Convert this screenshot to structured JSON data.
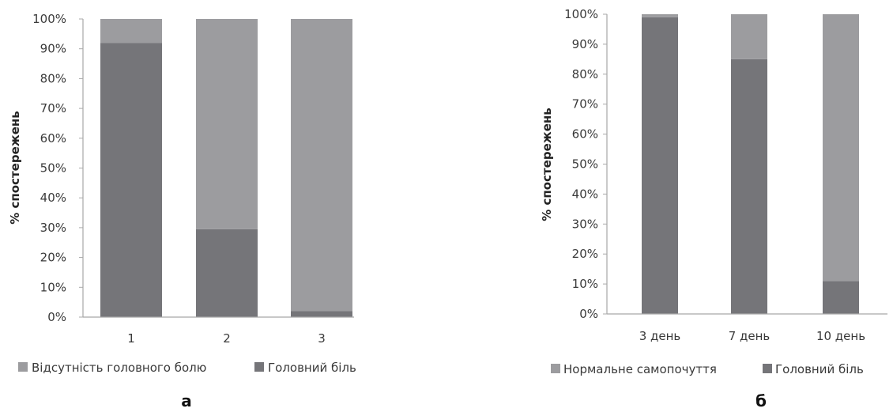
{
  "chart_data": [
    {
      "type": "bar",
      "stacked": true,
      "percent": true,
      "categories": [
        "1",
        "2",
        "3"
      ],
      "series": [
        {
          "name": "Головний біль",
          "values": [
            92,
            29.5,
            2
          ],
          "color": "#757579"
        },
        {
          "name": "Відсутність головного болю",
          "values": [
            8,
            70.5,
            98
          ],
          "color": "#9c9c9f"
        }
      ],
      "ylabel": "% спостережень",
      "ylim": [
        0,
        100
      ],
      "yticks": [
        "0%",
        "10%",
        "20%",
        "30%",
        "40%",
        "50%",
        "60%",
        "70%",
        "80%",
        "90%",
        "100%"
      ],
      "grid": false,
      "legend": {
        "position": "bottom",
        "items": [
          "Відсутність головного болю",
          "Головний біль"
        ]
      },
      "panel_label": "а"
    },
    {
      "type": "bar",
      "stacked": true,
      "percent": true,
      "categories": [
        "3 день",
        "7 день",
        "10 день"
      ],
      "series": [
        {
          "name": "Головний біль",
          "values": [
            99,
            85,
            11
          ],
          "color": "#757579"
        },
        {
          "name": "Нормальне самопочуття",
          "values": [
            1,
            15,
            89
          ],
          "color": "#9c9c9f"
        }
      ],
      "ylabel": "% спостережень",
      "ylim": [
        0,
        100
      ],
      "yticks": [
        "0%",
        "10%",
        "20%",
        "30%",
        "40%",
        "50%",
        "60%",
        "70%",
        "80%",
        "90%",
        "100%"
      ],
      "grid": false,
      "legend": {
        "position": "bottom",
        "items": [
          "Нормальне самопочуття",
          "Головний біль"
        ]
      },
      "panel_label": "б"
    }
  ]
}
